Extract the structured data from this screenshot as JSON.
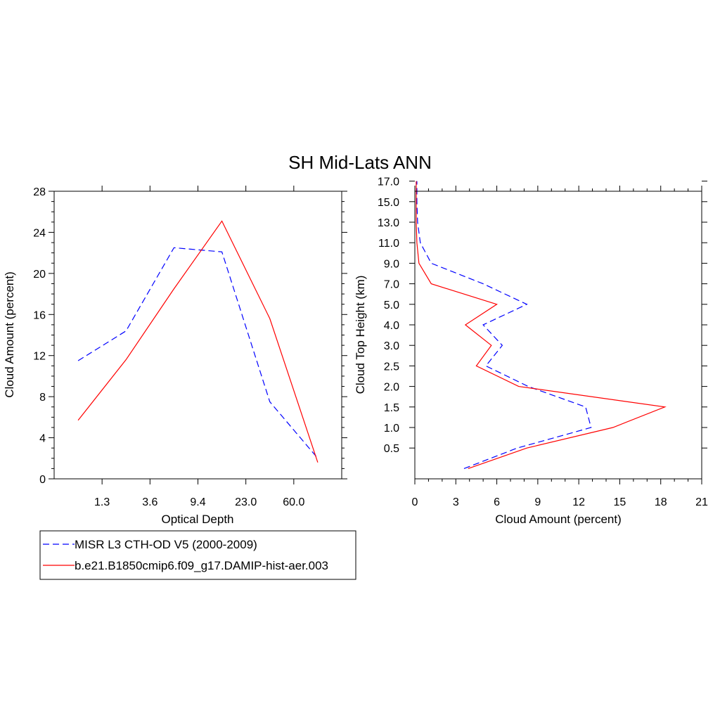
{
  "figure": {
    "title": "SH Mid-Lats ANN"
  },
  "legend": {
    "entries": [
      {
        "label": "MISR L3 CTH-OD V5 (2000-2009)",
        "color": "#0000ff",
        "dash": true
      },
      {
        "label": "b.e21.B1850cmip6.f09_g17.DAMIP-hist-aer.003",
        "color": "#ff0000",
        "dash": false
      }
    ]
  },
  "chart_data": [
    {
      "type": "line",
      "title": "SH Mid-Lats ANN",
      "xlabel": "Optical Depth",
      "ylabel": "Cloud Amount (percent)",
      "xtick_labels": [
        "1.3",
        "3.6",
        "9.4",
        "23.0",
        "60.0"
      ],
      "ylim": [
        0,
        28
      ],
      "yticks": [
        0,
        4,
        8,
        12,
        16,
        20,
        24,
        28
      ],
      "x_bins": [
        0.15,
        1.3,
        3.6,
        9.4,
        23.0,
        60.0,
        100.0
      ],
      "series": [
        {
          "name": "MISR L3 CTH-OD V5 (2000-2009)",
          "color": "#0000ff",
          "dash": true,
          "values": [
            11.5,
            14.4,
            22.5,
            22.1,
            7.5,
            2.0
          ]
        },
        {
          "name": "b.e21.B1850cmip6.f09_g17.DAMIP-hist-aer.003",
          "color": "#ff0000",
          "dash": false,
          "values": [
            5.7,
            11.6,
            18.5,
            25.1,
            15.6,
            1.6
          ]
        }
      ]
    },
    {
      "type": "line",
      "xlabel": "Cloud Amount (percent)",
      "ylabel": "Cloud Top Height (km)",
      "xlim": [
        0,
        21
      ],
      "xticks": [
        "0",
        "3",
        "6",
        "9",
        "12",
        "15",
        "18",
        "21"
      ],
      "ytick_labels": [
        "0.5",
        "1.0",
        "1.5",
        "2.0",
        "2.5",
        "3.0",
        "4.0",
        "5.0",
        "7.0",
        "9.0",
        "11.0",
        "13.0",
        "15.0",
        "17.0"
      ],
      "height_levels_km": [
        0.0,
        0.5,
        1.0,
        1.5,
        2.0,
        2.5,
        3.0,
        4.0,
        5.0,
        7.0,
        9.0,
        11.0,
        13.0,
        15.0,
        17.0
      ],
      "series": [
        {
          "name": "MISR L3 CTH-OD V5 (2000-2009)",
          "color": "#0000ff",
          "dash": true,
          "values": [
            3.6,
            7.5,
            12.9,
            12.5,
            8.3,
            5.2,
            6.4,
            5.0,
            8.2,
            5.0,
            1.2,
            0.4,
            0.2,
            0.15,
            0.15
          ]
        },
        {
          "name": "b.e21.B1850cmip6.f09_g17.DAMIP-hist-aer.003",
          "color": "#ff0000",
          "dash": false,
          "values": [
            3.9,
            8.2,
            14.5,
            18.3,
            7.6,
            4.5,
            5.6,
            3.7,
            6.0,
            1.2,
            0.3,
            0.15,
            0.1,
            0.1,
            0.1
          ]
        }
      ]
    }
  ]
}
